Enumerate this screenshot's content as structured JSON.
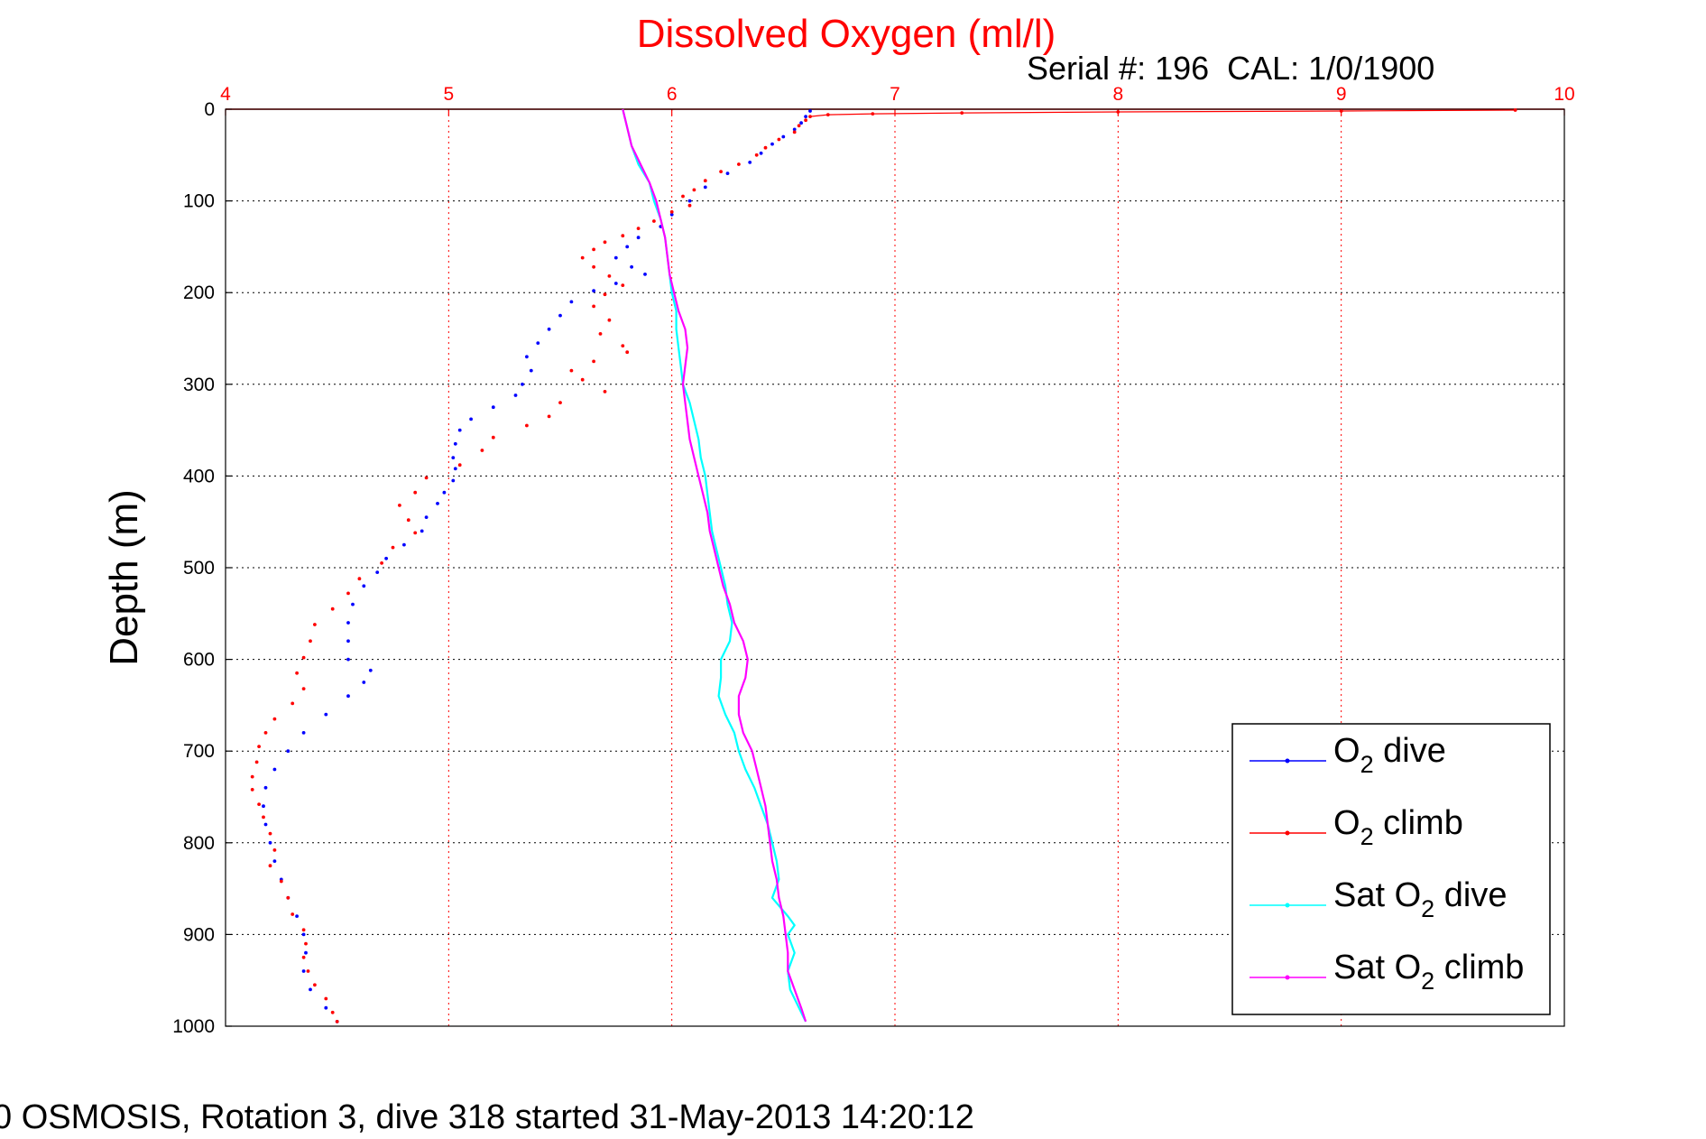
{
  "chart_data": {
    "type": "line",
    "title": "Dissolved Oxygen (ml/l)",
    "subtitle": "Serial #: 196  CAL: 1/0/1900",
    "caption": "0 OSMOSIS, Rotation 3, dive 318 started 31-May-2013 14:20:12",
    "xlabel": "",
    "ylabel": "Depth (m)",
    "xlim": [
      4,
      10
    ],
    "ylim": [
      0,
      1000
    ],
    "y_reversed": true,
    "x_axis_position": "top",
    "x_ticks": [
      "4",
      "5",
      "6",
      "7",
      "8",
      "9",
      "10"
    ],
    "y_ticks": [
      "0",
      "100",
      "200",
      "300",
      "400",
      "500",
      "600",
      "700",
      "800",
      "900",
      "1000"
    ],
    "grid": true,
    "legend_position": "bottom-right",
    "colors": {
      "title": "#ff0000",
      "x_axis": "#ff0000",
      "x_grid": "#ff0000",
      "y_grid": "#000000"
    },
    "series": [
      {
        "name": "O2 dive",
        "legend_main": "O",
        "legend_sub": "2",
        "legend_rest": " dive",
        "color": "#0000ff",
        "style": "dots",
        "points": [
          [
            6.62,
            2
          ],
          [
            6.6,
            8
          ],
          [
            6.58,
            15
          ],
          [
            6.55,
            22
          ],
          [
            6.5,
            30
          ],
          [
            6.45,
            38
          ],
          [
            6.4,
            48
          ],
          [
            6.35,
            58
          ],
          [
            6.25,
            70
          ],
          [
            6.15,
            85
          ],
          [
            6.08,
            100
          ],
          [
            6.0,
            115
          ],
          [
            5.95,
            128
          ],
          [
            5.85,
            140
          ],
          [
            5.8,
            150
          ],
          [
            5.75,
            162
          ],
          [
            5.82,
            172
          ],
          [
            5.88,
            180
          ],
          [
            5.75,
            190
          ],
          [
            5.65,
            198
          ],
          [
            5.55,
            210
          ],
          [
            5.5,
            225
          ],
          [
            5.45,
            240
          ],
          [
            5.4,
            255
          ],
          [
            5.35,
            270
          ],
          [
            5.37,
            285
          ],
          [
            5.33,
            300
          ],
          [
            5.3,
            312
          ],
          [
            5.2,
            325
          ],
          [
            5.1,
            338
          ],
          [
            5.05,
            350
          ],
          [
            5.03,
            365
          ],
          [
            5.02,
            380
          ],
          [
            5.03,
            392
          ],
          [
            5.02,
            405
          ],
          [
            4.98,
            418
          ],
          [
            4.95,
            430
          ],
          [
            4.9,
            445
          ],
          [
            4.88,
            460
          ],
          [
            4.8,
            475
          ],
          [
            4.72,
            490
          ],
          [
            4.68,
            505
          ],
          [
            4.62,
            520
          ],
          [
            4.57,
            540
          ],
          [
            4.55,
            560
          ],
          [
            4.55,
            580
          ],
          [
            4.55,
            600
          ],
          [
            4.65,
            612
          ],
          [
            4.62,
            625
          ],
          [
            4.55,
            640
          ],
          [
            4.45,
            660
          ],
          [
            4.35,
            680
          ],
          [
            4.28,
            700
          ],
          [
            4.22,
            720
          ],
          [
            4.18,
            740
          ],
          [
            4.17,
            760
          ],
          [
            4.18,
            780
          ],
          [
            4.2,
            800
          ],
          [
            4.22,
            820
          ],
          [
            4.25,
            840
          ],
          [
            4.28,
            860
          ],
          [
            4.32,
            880
          ],
          [
            4.35,
            900
          ],
          [
            4.36,
            920
          ],
          [
            4.35,
            940
          ],
          [
            4.38,
            960
          ],
          [
            4.45,
            980
          ],
          [
            4.5,
            995
          ]
        ]
      },
      {
        "name": "O2 climb",
        "legend_main": "O",
        "legend_sub": "2",
        "legend_rest": " climb",
        "color": "#ff0000",
        "style": "dots",
        "points": [
          [
            9.78,
            1
          ],
          [
            9.0,
            2
          ],
          [
            8.0,
            3
          ],
          [
            7.3,
            4
          ],
          [
            6.9,
            5
          ],
          [
            6.7,
            6
          ],
          [
            6.62,
            8
          ],
          [
            6.6,
            12
          ],
          [
            6.57,
            18
          ],
          [
            6.55,
            25
          ],
          [
            6.48,
            33
          ],
          [
            6.42,
            42
          ],
          [
            6.38,
            50
          ],
          [
            6.3,
            60
          ],
          [
            6.22,
            68
          ],
          [
            6.15,
            78
          ],
          [
            6.1,
            88
          ],
          [
            6.05,
            95
          ],
          [
            6.08,
            105
          ],
          [
            6.0,
            112
          ],
          [
            5.92,
            122
          ],
          [
            5.85,
            130
          ],
          [
            5.78,
            138
          ],
          [
            5.7,
            145
          ],
          [
            5.65,
            153
          ],
          [
            5.6,
            162
          ],
          [
            5.65,
            172
          ],
          [
            5.72,
            182
          ],
          [
            5.78,
            192
          ],
          [
            5.7,
            202
          ],
          [
            5.65,
            215
          ],
          [
            5.72,
            230
          ],
          [
            5.68,
            245
          ],
          [
            5.78,
            258
          ],
          [
            5.8,
            265
          ],
          [
            5.65,
            275
          ],
          [
            5.55,
            285
          ],
          [
            5.6,
            295
          ],
          [
            5.7,
            308
          ],
          [
            5.5,
            320
          ],
          [
            5.45,
            335
          ],
          [
            5.35,
            345
          ],
          [
            5.2,
            358
          ],
          [
            5.15,
            372
          ],
          [
            5.05,
            388
          ],
          [
            4.9,
            402
          ],
          [
            4.85,
            418
          ],
          [
            4.78,
            432
          ],
          [
            4.82,
            448
          ],
          [
            4.85,
            462
          ],
          [
            4.75,
            478
          ],
          [
            4.7,
            495
          ],
          [
            4.6,
            512
          ],
          [
            4.55,
            528
          ],
          [
            4.48,
            545
          ],
          [
            4.4,
            562
          ],
          [
            4.38,
            580
          ],
          [
            4.35,
            598
          ],
          [
            4.32,
            615
          ],
          [
            4.35,
            632
          ],
          [
            4.3,
            648
          ],
          [
            4.22,
            665
          ],
          [
            4.18,
            680
          ],
          [
            4.15,
            695
          ],
          [
            4.14,
            712
          ],
          [
            4.12,
            728
          ],
          [
            4.12,
            742
          ],
          [
            4.15,
            758
          ],
          [
            4.17,
            772
          ],
          [
            4.2,
            790
          ],
          [
            4.22,
            808
          ],
          [
            4.2,
            825
          ],
          [
            4.25,
            842
          ],
          [
            4.28,
            860
          ],
          [
            4.3,
            878
          ],
          [
            4.35,
            895
          ],
          [
            4.36,
            910
          ],
          [
            4.35,
            925
          ],
          [
            4.37,
            940
          ],
          [
            4.4,
            955
          ],
          [
            4.45,
            970
          ],
          [
            4.48,
            985
          ],
          [
            4.5,
            995
          ]
        ]
      },
      {
        "name": "Sat O2 dive",
        "legend_main": "Sat O",
        "legend_sub": "2",
        "legend_rest": " dive",
        "color": "#00ffff",
        "style": "line",
        "points": [
          [
            5.78,
            0
          ],
          [
            5.8,
            20
          ],
          [
            5.82,
            40
          ],
          [
            5.85,
            60
          ],
          [
            5.9,
            80
          ],
          [
            5.92,
            100
          ],
          [
            5.95,
            120
          ],
          [
            5.97,
            140
          ],
          [
            5.98,
            160
          ],
          [
            5.99,
            180
          ],
          [
            6.0,
            200
          ],
          [
            6.02,
            220
          ],
          [
            6.02,
            240
          ],
          [
            6.03,
            260
          ],
          [
            6.04,
            280
          ],
          [
            6.05,
            300
          ],
          [
            6.08,
            320
          ],
          [
            6.1,
            340
          ],
          [
            6.12,
            360
          ],
          [
            6.13,
            380
          ],
          [
            6.15,
            400
          ],
          [
            6.16,
            420
          ],
          [
            6.17,
            440
          ],
          [
            6.18,
            460
          ],
          [
            6.2,
            480
          ],
          [
            6.22,
            500
          ],
          [
            6.24,
            520
          ],
          [
            6.25,
            540
          ],
          [
            6.27,
            560
          ],
          [
            6.26,
            580
          ],
          [
            6.22,
            600
          ],
          [
            6.22,
            620
          ],
          [
            6.21,
            640
          ],
          [
            6.24,
            660
          ],
          [
            6.28,
            680
          ],
          [
            6.3,
            700
          ],
          [
            6.33,
            720
          ],
          [
            6.37,
            740
          ],
          [
            6.4,
            760
          ],
          [
            6.43,
            780
          ],
          [
            6.45,
            800
          ],
          [
            6.47,
            820
          ],
          [
            6.48,
            840
          ],
          [
            6.45,
            860
          ],
          [
            6.52,
            880
          ],
          [
            6.55,
            890
          ],
          [
            6.52,
            900
          ],
          [
            6.55,
            920
          ],
          [
            6.52,
            940
          ],
          [
            6.53,
            960
          ],
          [
            6.57,
            980
          ],
          [
            6.6,
            995
          ]
        ]
      },
      {
        "name": "Sat O2 climb",
        "legend_main": "Sat O",
        "legend_sub": "2",
        "legend_rest": " climb",
        "color": "#ff00ff",
        "style": "line",
        "points": [
          [
            5.78,
            0
          ],
          [
            5.8,
            20
          ],
          [
            5.82,
            40
          ],
          [
            5.86,
            60
          ],
          [
            5.9,
            80
          ],
          [
            5.93,
            100
          ],
          [
            5.95,
            120
          ],
          [
            5.97,
            140
          ],
          [
            5.98,
            160
          ],
          [
            5.99,
            180
          ],
          [
            6.01,
            200
          ],
          [
            6.03,
            220
          ],
          [
            6.06,
            240
          ],
          [
            6.07,
            260
          ],
          [
            6.06,
            280
          ],
          [
            6.05,
            300
          ],
          [
            6.06,
            320
          ],
          [
            6.07,
            340
          ],
          [
            6.08,
            360
          ],
          [
            6.1,
            380
          ],
          [
            6.12,
            400
          ],
          [
            6.14,
            420
          ],
          [
            6.16,
            440
          ],
          [
            6.17,
            460
          ],
          [
            6.19,
            480
          ],
          [
            6.21,
            500
          ],
          [
            6.23,
            520
          ],
          [
            6.26,
            540
          ],
          [
            6.28,
            560
          ],
          [
            6.32,
            580
          ],
          [
            6.34,
            600
          ],
          [
            6.33,
            620
          ],
          [
            6.3,
            640
          ],
          [
            6.3,
            660
          ],
          [
            6.32,
            680
          ],
          [
            6.36,
            700
          ],
          [
            6.38,
            720
          ],
          [
            6.4,
            740
          ],
          [
            6.42,
            760
          ],
          [
            6.43,
            780
          ],
          [
            6.44,
            800
          ],
          [
            6.45,
            820
          ],
          [
            6.47,
            840
          ],
          [
            6.48,
            860
          ],
          [
            6.5,
            880
          ],
          [
            6.51,
            900
          ],
          [
            6.52,
            920
          ],
          [
            6.52,
            940
          ],
          [
            6.55,
            960
          ],
          [
            6.58,
            980
          ],
          [
            6.6,
            995
          ]
        ]
      }
    ]
  }
}
